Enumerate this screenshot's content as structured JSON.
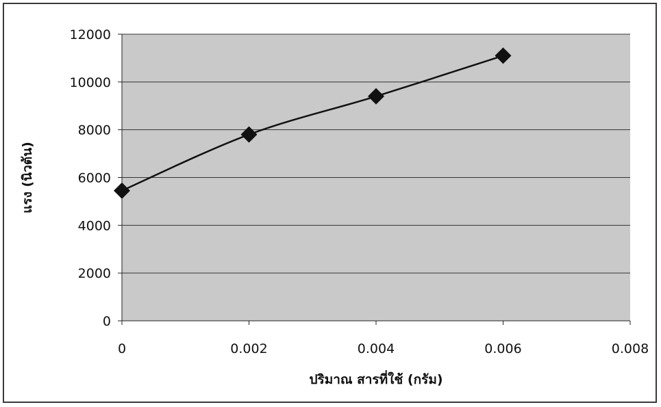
{
  "chart_data": {
    "type": "line",
    "xlabel": "ปริมาณ สารที่ใช้ (กรัม)",
    "ylabel": "แรง (นิวตัน)",
    "x": [
      0,
      0.002,
      0.004,
      0.006
    ],
    "series": [
      {
        "values": [
          5450,
          7800,
          9400,
          11100
        ]
      }
    ],
    "xlim": [
      0,
      0.008
    ],
    "ylim": [
      0,
      12000
    ],
    "xticks": [
      "0",
      "0.002",
      "0.004",
      "0.006",
      "0.008"
    ],
    "yticks": [
      "0",
      "2000",
      "4000",
      "6000",
      "8000",
      "10000",
      "12000"
    ],
    "grid": true,
    "legend": "none",
    "colors": {
      "plot_background": "#c9c9c9",
      "line": "#111111",
      "grid": "#333333"
    }
  }
}
